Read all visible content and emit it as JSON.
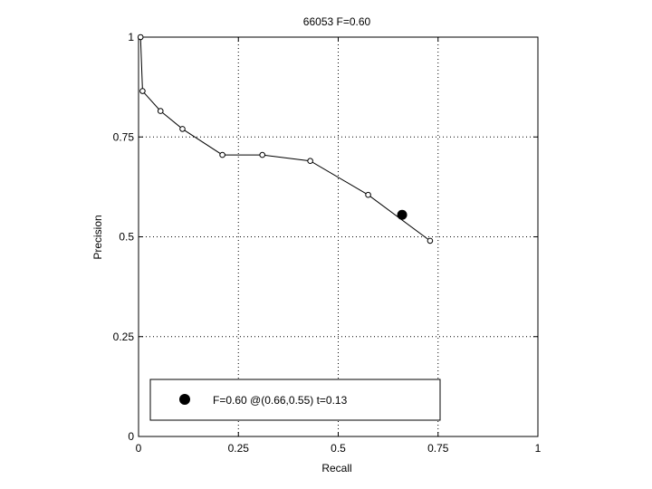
{
  "chart_data": {
    "type": "line",
    "title": "66053 F=0.60",
    "xlabel": "Recall",
    "ylabel": "Precision",
    "xlim": [
      0,
      1
    ],
    "ylim": [
      0,
      1
    ],
    "xticks": [
      0,
      0.25,
      0.5,
      0.75,
      1
    ],
    "xtick_labels": [
      "0",
      "0.25",
      "0.5",
      "0.75",
      "1"
    ],
    "yticks": [
      0,
      0.25,
      0.5,
      0.75,
      1
    ],
    "ytick_labels": [
      "0",
      "0.25",
      "0.5",
      "0.75",
      "1"
    ],
    "grid": true,
    "grid_style": "dotted",
    "series": [
      {
        "marker": "open-circle",
        "color": "#000000",
        "x": [
          0.005,
          0.01,
          0.055,
          0.11,
          0.21,
          0.31,
          0.43,
          0.575,
          0.73
        ],
        "y": [
          1.0,
          0.865,
          0.815,
          0.77,
          0.705,
          0.705,
          0.69,
          0.605,
          0.49
        ]
      }
    ],
    "highlight_point": {
      "x": 0.66,
      "y": 0.555,
      "marker": "filled-circle",
      "color": "#000000"
    },
    "legend": {
      "placement": "bottom-center",
      "text": "F=0.60 @(0.66,0.55) t=0.13"
    }
  }
}
